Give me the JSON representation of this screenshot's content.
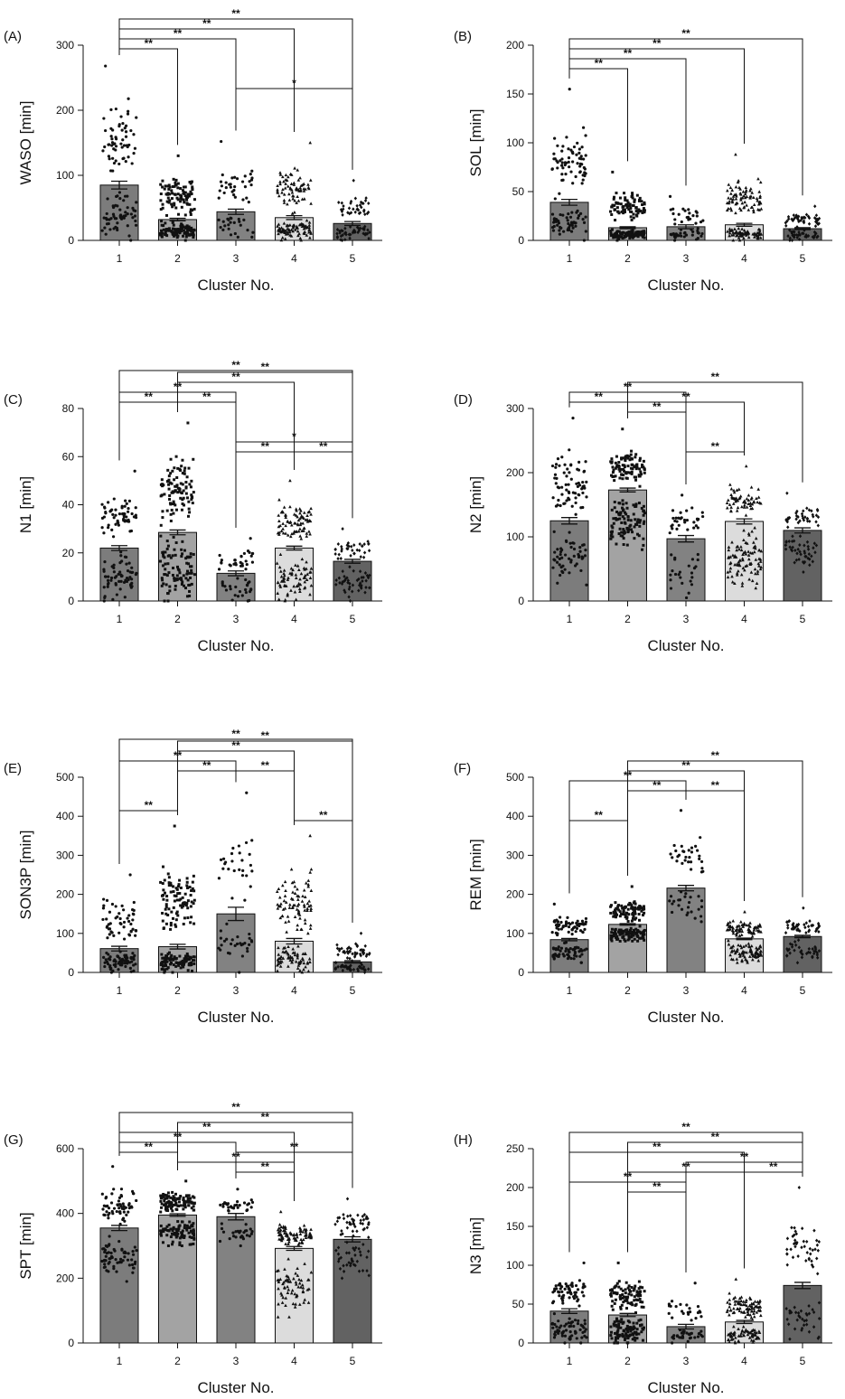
{
  "figure": {
    "x_label": "Cluster No."
  },
  "colors": {
    "bar_fills": [
      "#7c7c7c",
      "#a3a3a3",
      "#828282",
      "#dcdcdc",
      "#626262"
    ],
    "ink": "#111111",
    "background": "#ffffff"
  },
  "chart_data": [
    {
      "type": "bar",
      "panel": "(A)",
      "ylabel": "WASO [min]",
      "xlabel": "Cluster No.",
      "categories": [
        "1",
        "2",
        "3",
        "4",
        "5"
      ],
      "values": [
        85,
        32,
        44,
        35,
        26
      ],
      "sem": [
        6,
        2,
        4,
        3,
        3
      ],
      "ylim": [
        0,
        300
      ],
      "yticks": [
        0,
        100,
        200,
        300
      ],
      "points": {
        "n": [
          120,
          190,
          55,
          150,
          80
        ],
        "max": [
          268,
          130,
          152,
          150,
          92
        ],
        "min": [
          0,
          0,
          5,
          0,
          0
        ]
      },
      "brackets": [
        {
          "from": "1",
          "to": "2",
          "label": "**"
        },
        {
          "from": "1",
          "to": "3",
          "label": "**"
        },
        {
          "from": "1",
          "to": "4",
          "label": "**"
        },
        {
          "from": "1",
          "to": "5",
          "label": "**"
        },
        {
          "from": "3",
          "to": "5",
          "label": "*"
        }
      ]
    },
    {
      "type": "bar",
      "panel": "(B)",
      "ylabel": "SOL [min]",
      "xlabel": "Cluster No.",
      "categories": [
        "1",
        "2",
        "3",
        "4",
        "5"
      ],
      "values": [
        39,
        13,
        14,
        16,
        12
      ],
      "sem": [
        3,
        1,
        2,
        1.5,
        1
      ],
      "ylim": [
        0,
        200
      ],
      "yticks": [
        0,
        50,
        100,
        150,
        200
      ],
      "points": {
        "n": [
          120,
          190,
          55,
          150,
          80
        ],
        "max": [
          155,
          70,
          45,
          88,
          35
        ],
        "min": [
          0,
          0,
          0,
          0,
          0
        ]
      },
      "brackets": [
        {
          "from": "1",
          "to": "2",
          "label": "**"
        },
        {
          "from": "1",
          "to": "3",
          "label": "**"
        },
        {
          "from": "1",
          "to": "4",
          "label": "**"
        },
        {
          "from": "1",
          "to": "5",
          "label": "**"
        }
      ]
    },
    {
      "type": "bar",
      "panel": "(C)",
      "ylabel": "N1 [min]",
      "xlabel": "Cluster No.",
      "categories": [
        "1",
        "2",
        "3",
        "4",
        "5"
      ],
      "values": [
        22,
        28.5,
        11.5,
        22,
        16.5
      ],
      "sem": [
        1,
        1,
        1,
        0.8,
        0.8
      ],
      "ylim": [
        0,
        80
      ],
      "yticks": [
        0,
        20,
        40,
        60,
        80
      ],
      "points": {
        "n": [
          120,
          190,
          55,
          150,
          80
        ],
        "max": [
          54,
          74,
          26,
          50,
          30
        ],
        "min": [
          0,
          0,
          0,
          0,
          0
        ]
      },
      "brackets": [
        {
          "from": "1",
          "to": "2",
          "label": "**"
        },
        {
          "from": "1",
          "to": "3",
          "label": "**"
        },
        {
          "from": "1",
          "to": "5",
          "label": "**"
        },
        {
          "from": "2",
          "to": "3",
          "label": "**"
        },
        {
          "from": "2",
          "to": "4",
          "label": "**"
        },
        {
          "from": "2",
          "to": "5",
          "label": "**"
        },
        {
          "from": "3",
          "to": "4",
          "label": "**"
        },
        {
          "from": "3",
          "to": "5",
          "label": "*"
        },
        {
          "from": "4",
          "to": "5",
          "label": "**"
        }
      ]
    },
    {
      "type": "bar",
      "panel": "(D)",
      "ylabel": "N2 [min]",
      "xlabel": "Cluster No.",
      "categories": [
        "1",
        "2",
        "3",
        "4",
        "5"
      ],
      "values": [
        125,
        173,
        97,
        124,
        110
      ],
      "sem": [
        5,
        3,
        5,
        4,
        4
      ],
      "ylim": [
        0,
        300
      ],
      "yticks": [
        0,
        100,
        200,
        300
      ],
      "points": {
        "n": [
          120,
          190,
          55,
          150,
          80
        ],
        "max": [
          285,
          268,
          165,
          210,
          168
        ],
        "min": [
          25,
          80,
          5,
          20,
          45
        ]
      },
      "brackets": [
        {
          "from": "1",
          "to": "2",
          "label": "**"
        },
        {
          "from": "1",
          "to": "3",
          "label": "**"
        },
        {
          "from": "2",
          "to": "3",
          "label": "**"
        },
        {
          "from": "2",
          "to": "4",
          "label": "**"
        },
        {
          "from": "2",
          "to": "5",
          "label": "**"
        },
        {
          "from": "3",
          "to": "4",
          "label": "**"
        }
      ]
    },
    {
      "type": "bar",
      "panel": "(E)",
      "ylabel": "SON3P [min]",
      "xlabel": "Cluster No.",
      "categories": [
        "1",
        "2",
        "3",
        "4",
        "5"
      ],
      "values": [
        61,
        66,
        150,
        80,
        27
      ],
      "sem": [
        6,
        6,
        17,
        7,
        3
      ],
      "ylim": [
        0,
        500
      ],
      "yticks": [
        0,
        100,
        200,
        300,
        400,
        500
      ],
      "points": {
        "n": [
          120,
          190,
          55,
          150,
          80
        ],
        "max": [
          250,
          375,
          460,
          350,
          100
        ],
        "min": [
          0,
          0,
          0,
          0,
          0
        ]
      },
      "brackets": [
        {
          "from": "1",
          "to": "2",
          "label": "**"
        },
        {
          "from": "1",
          "to": "3",
          "label": "**"
        },
        {
          "from": "1",
          "to": "5",
          "label": "**"
        },
        {
          "from": "2",
          "to": "3",
          "label": "**"
        },
        {
          "from": "2",
          "to": "4",
          "label": "**"
        },
        {
          "from": "2",
          "to": "5",
          "label": "**"
        },
        {
          "from": "3",
          "to": "4",
          "label": "**"
        },
        {
          "from": "4",
          "to": "5",
          "label": "**"
        }
      ]
    },
    {
      "type": "bar",
      "panel": "(F)",
      "ylabel": "REM [min]",
      "xlabel": "Cluster No.",
      "categories": [
        "1",
        "2",
        "3",
        "4",
        "5"
      ],
      "values": [
        84,
        123,
        216,
        86,
        92
      ],
      "sem": [
        3,
        2,
        7,
        2,
        3
      ],
      "ylim": [
        0,
        500
      ],
      "yticks": [
        0,
        100,
        200,
        300,
        400,
        500
      ],
      "points": {
        "n": [
          120,
          190,
          55,
          150,
          80
        ],
        "max": [
          175,
          220,
          415,
          155,
          165
        ],
        "min": [
          25,
          80,
          130,
          25,
          25
        ]
      },
      "brackets": [
        {
          "from": "1",
          "to": "2",
          "label": "**"
        },
        {
          "from": "1",
          "to": "3",
          "label": "**"
        },
        {
          "from": "2",
          "to": "3",
          "label": "**"
        },
        {
          "from": "2",
          "to": "4",
          "label": "**"
        },
        {
          "from": "2",
          "to": "5",
          "label": "**"
        },
        {
          "from": "3",
          "to": "4",
          "label": "**"
        }
      ]
    },
    {
      "type": "bar",
      "panel": "(G)",
      "ylabel": "SPT [min]",
      "xlabel": "Cluster No.",
      "categories": [
        "1",
        "2",
        "3",
        "4",
        "5"
      ],
      "values": [
        355,
        395,
        390,
        292,
        320
      ],
      "sem": [
        8,
        4,
        10,
        6,
        8
      ],
      "ylim": [
        0,
        600
      ],
      "yticks": [
        0,
        200,
        400,
        600
      ],
      "points": {
        "n": [
          120,
          190,
          55,
          150,
          80
        ],
        "max": [
          545,
          500,
          475,
          405,
          445
        ],
        "min": [
          190,
          300,
          300,
          80,
          200
        ]
      },
      "brackets": [
        {
          "from": "1",
          "to": "2",
          "label": "**"
        },
        {
          "from": "1",
          "to": "3",
          "label": "**"
        },
        {
          "from": "1",
          "to": "4",
          "label": "**"
        },
        {
          "from": "1",
          "to": "5",
          "label": "**"
        },
        {
          "from": "2",
          "to": "4",
          "label": "**"
        },
        {
          "from": "2",
          "to": "5",
          "label": "**"
        },
        {
          "from": "3",
          "to": "4",
          "label": "**"
        },
        {
          "from": "3",
          "to": "5",
          "label": "**"
        }
      ]
    },
    {
      "type": "bar",
      "panel": "(H)",
      "ylabel": "N3 [min]",
      "xlabel": "Cluster No.",
      "categories": [
        "1",
        "2",
        "3",
        "4",
        "5"
      ],
      "values": [
        41,
        36,
        21,
        27,
        74
      ],
      "sem": [
        3,
        2,
        3,
        2,
        4
      ],
      "ylim": [
        0,
        250
      ],
      "yticks": [
        0,
        50,
        100,
        150,
        200,
        250
      ],
      "points": {
        "n": [
          120,
          190,
          55,
          150,
          80
        ],
        "max": [
          103,
          103,
          77,
          82,
          200
        ],
        "min": [
          0,
          0,
          0,
          0,
          5
        ]
      },
      "brackets": [
        {
          "from": "1",
          "to": "3",
          "label": "**"
        },
        {
          "from": "1",
          "to": "4",
          "label": "**"
        },
        {
          "from": "1",
          "to": "5",
          "label": "**"
        },
        {
          "from": "2",
          "to": "3",
          "label": "**"
        },
        {
          "from": "2",
          "to": "4",
          "label": "**"
        },
        {
          "from": "2",
          "to": "5",
          "label": "**"
        },
        {
          "from": "3",
          "to": "5",
          "label": "**"
        },
        {
          "from": "4",
          "to": "5",
          "label": "**"
        }
      ]
    }
  ]
}
